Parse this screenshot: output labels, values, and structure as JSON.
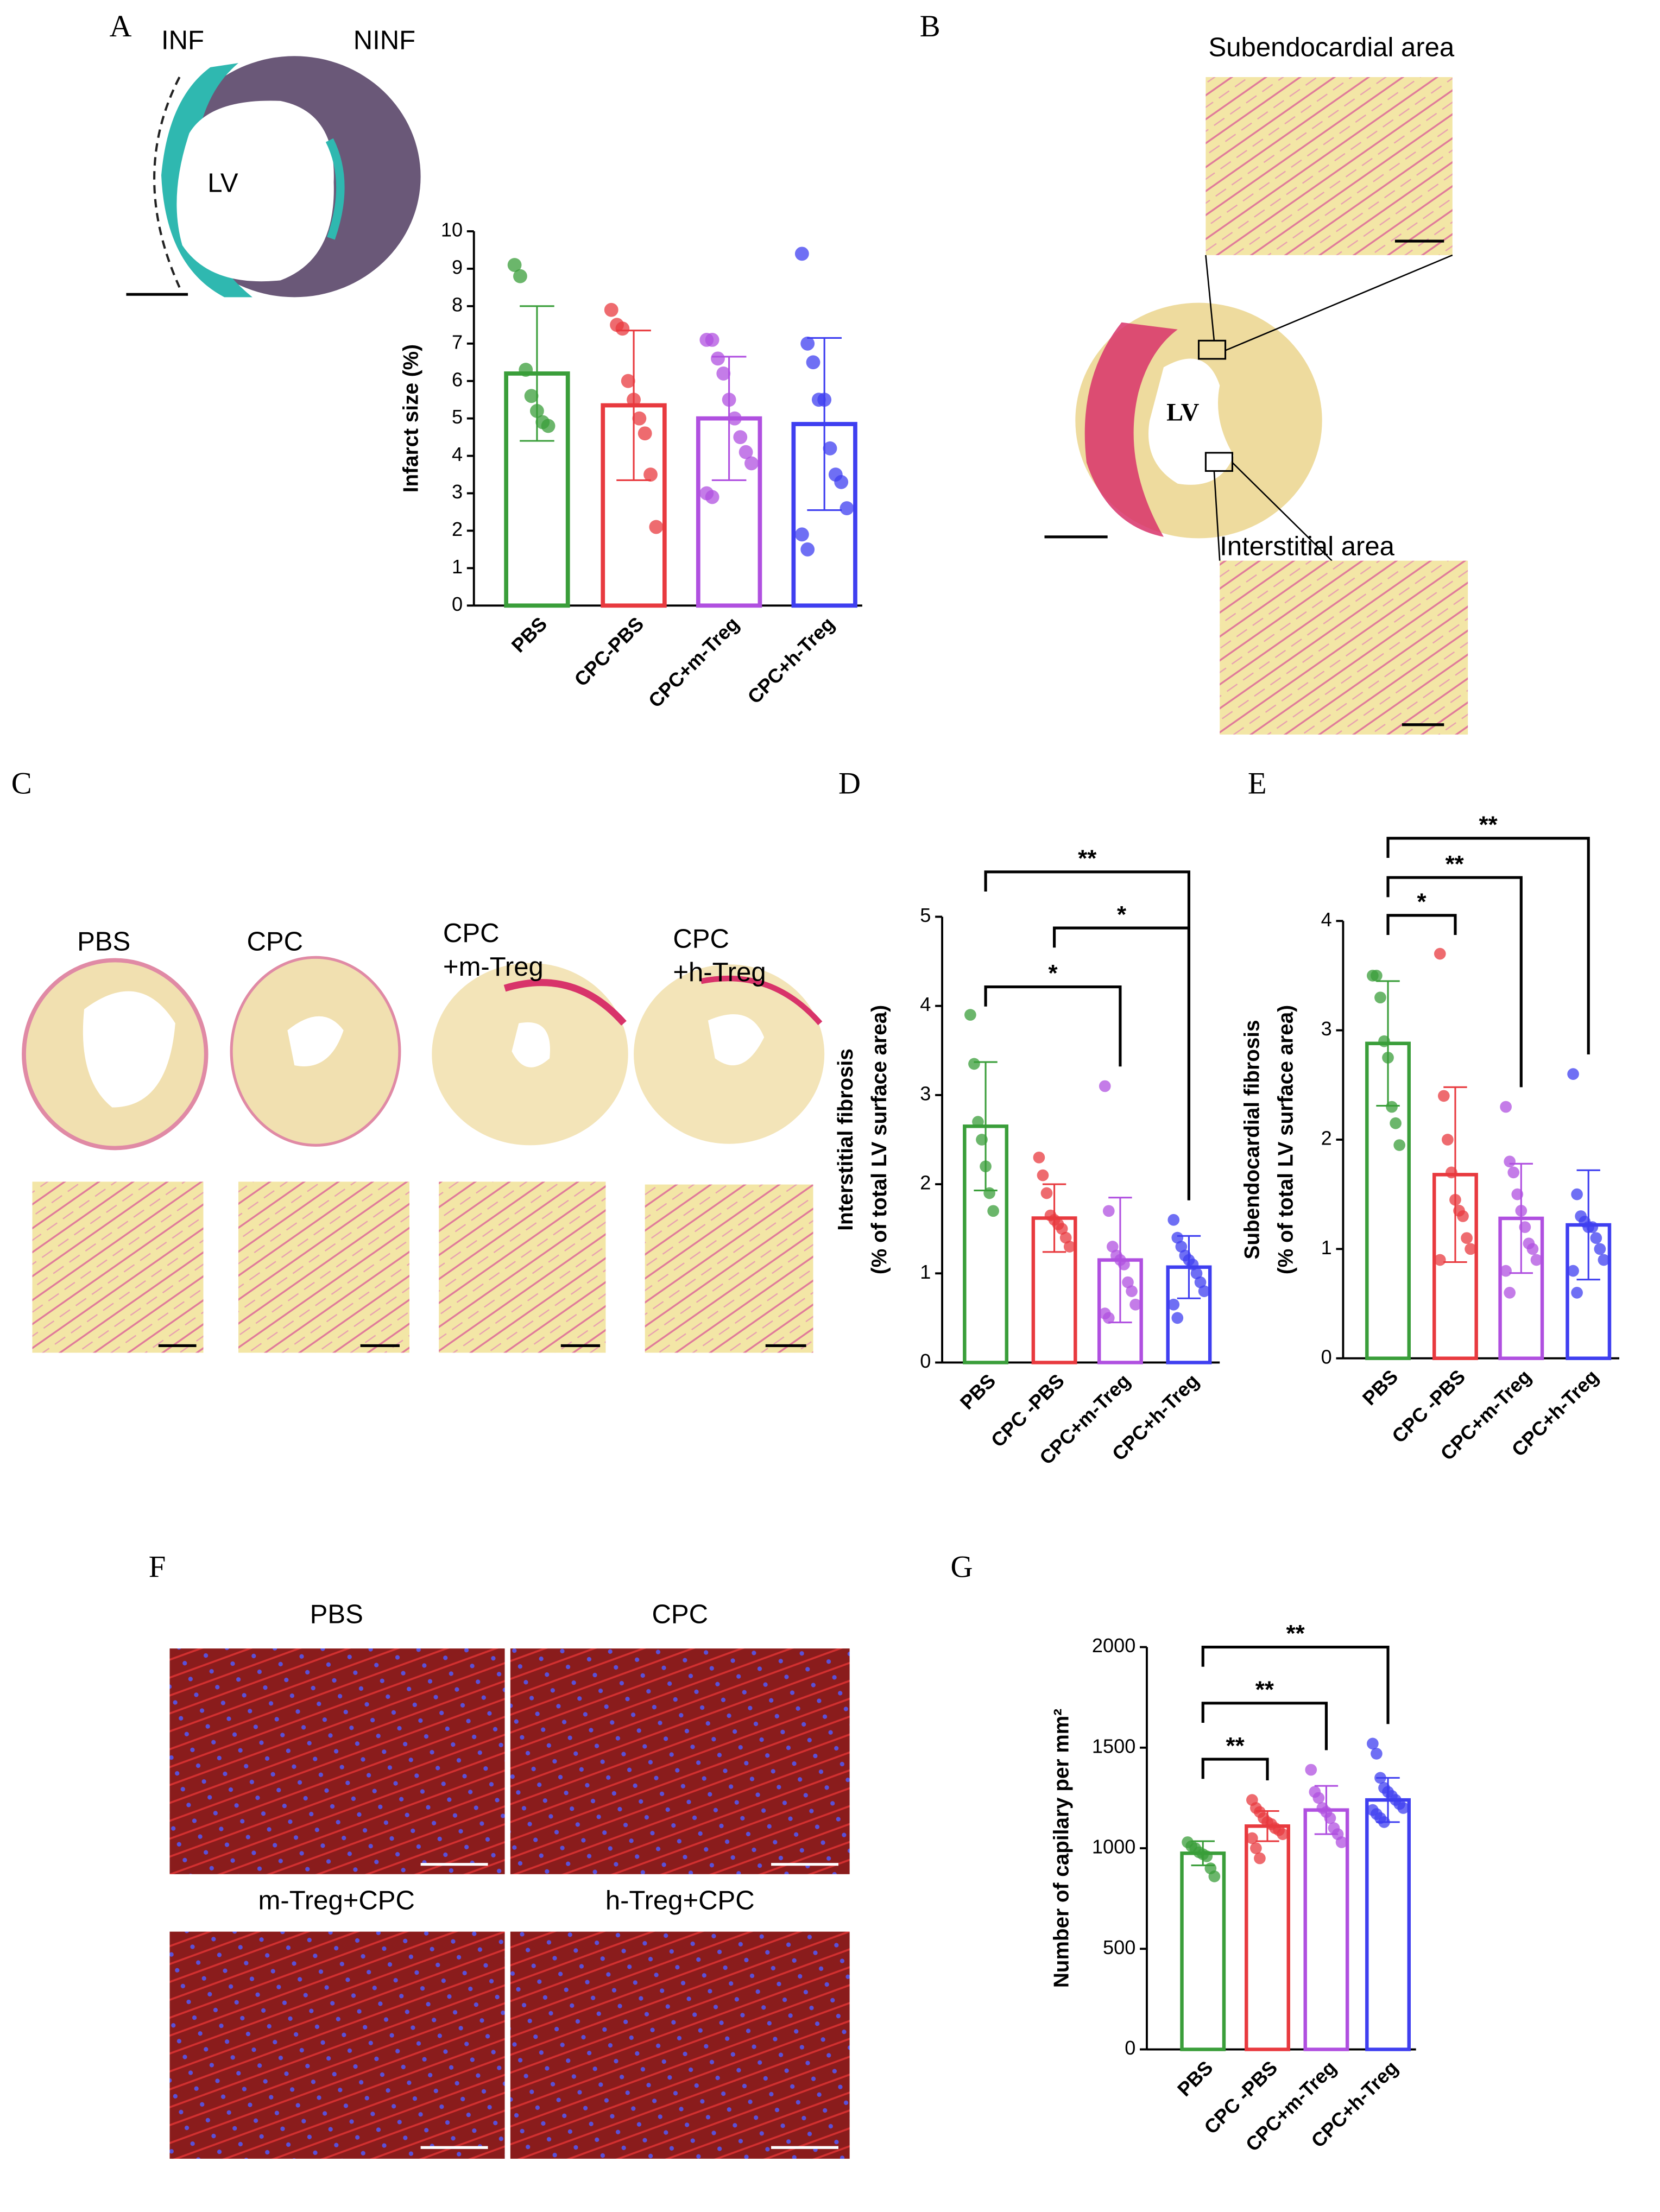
{
  "panel_letters": [
    "A",
    "B",
    "C",
    "D",
    "E",
    "F",
    "G"
  ],
  "image_labels": [
    "INF",
    "NINF",
    "LV",
    "Subendocardial area",
    "LV",
    "Interstitial area",
    "PBS",
    "CPC",
    "CPC",
    "+m-Treg",
    "CPC",
    "+h-Treg",
    "PBS",
    "CPC",
    "m-Treg+CPC",
    "h-Treg+CPC"
  ],
  "chart_data": [
    {
      "type": "bar",
      "y_label": [
        "Infarct size (%)"
      ],
      "categories": [
        "PBS",
        "CPC-PBS",
        "CPC+m-Treg",
        "CPC+h-Treg"
      ],
      "colors": [
        "#3a9e3a",
        "#e83a3f",
        "#b050e0",
        "#3f3ff0"
      ],
      "values": [
        6.2,
        5.35,
        5.0,
        4.85
      ],
      "errors": [
        1.8,
        2.0,
        1.65,
        2.3
      ],
      "points": [
        [
          9.1,
          8.8,
          6.3,
          5.6,
          5.2,
          4.9,
          4.8
        ],
        [
          7.9,
          7.5,
          7.4,
          6.0,
          5.5,
          5.0,
          4.6,
          3.5,
          2.1
        ],
        [
          7.1,
          7.1,
          6.6,
          6.2,
          5.5,
          5.0,
          4.5,
          4.1,
          3.8,
          3.0,
          2.9
        ],
        [
          9.4,
          7.0,
          6.5,
          5.5,
          5.5,
          4.2,
          3.5,
          3.3,
          2.6,
          1.9,
          1.5
        ]
      ],
      "ylim": [
        0,
        10
      ],
      "yticks": [
        0,
        1,
        2,
        3,
        4,
        5,
        6,
        7,
        8,
        9,
        10
      ],
      "significance": []
    },
    {
      "type": "bar",
      "y_label": [
        "Interstitial fibrosis",
        "(% of total LV surface area)"
      ],
      "categories": [
        "PBS",
        "CPC -PBS",
        "CPC+m-Treg",
        "CPC+h-Treg"
      ],
      "colors": [
        "#3a9e3a",
        "#e83a3f",
        "#b050e0",
        "#3f3ff0"
      ],
      "values": [
        2.65,
        1.62,
        1.15,
        1.07
      ],
      "errors": [
        0.72,
        0.38,
        0.7,
        0.35
      ],
      "points": [
        [
          3.9,
          3.35,
          2.7,
          2.5,
          2.2,
          1.9,
          1.7
        ],
        [
          2.3,
          2.1,
          1.9,
          1.65,
          1.6,
          1.55,
          1.5,
          1.4,
          1.3
        ],
        [
          3.1,
          1.7,
          1.3,
          1.2,
          1.15,
          1.1,
          0.9,
          0.8,
          0.65,
          0.55,
          0.5
        ],
        [
          1.6,
          1.4,
          1.3,
          1.2,
          1.15,
          1.1,
          1.0,
          0.9,
          0.8,
          0.65,
          0.5
        ]
      ],
      "ylim": [
        0,
        5
      ],
      "yticks": [
        0,
        1,
        2,
        3,
        4,
        5
      ],
      "significance": [
        {
          "groups": [
            0,
            3
          ],
          "label": "**"
        },
        {
          "groups": [
            1,
            3
          ],
          "label": "*"
        },
        {
          "groups": [
            0,
            2
          ],
          "label": "*"
        }
      ]
    },
    {
      "type": "bar",
      "y_label": [
        "Subendocardial  fibrosis",
        "(% of total LV surface area)"
      ],
      "categories": [
        "PBS",
        "CPC -PBS",
        "CPC+m-Treg",
        "CPC+h-Treg"
      ],
      "colors": [
        "#3a9e3a",
        "#e83a3f",
        "#b050e0",
        "#3f3ff0"
      ],
      "values": [
        2.88,
        1.68,
        1.28,
        1.22
      ],
      "errors": [
        0.57,
        0.8,
        0.5,
        0.5
      ],
      "points": [
        [
          3.5,
          3.5,
          3.3,
          2.9,
          2.75,
          2.3,
          2.15,
          1.95
        ],
        [
          3.7,
          2.4,
          2.0,
          1.7,
          1.45,
          1.35,
          1.3,
          1.1,
          1.0,
          0.9
        ],
        [
          2.3,
          1.8,
          1.7,
          1.5,
          1.35,
          1.2,
          1.05,
          1.0,
          0.9,
          0.8,
          0.6
        ],
        [
          2.6,
          1.5,
          1.3,
          1.25,
          1.2,
          1.2,
          1.1,
          1.0,
          0.9,
          0.8,
          0.6
        ]
      ],
      "ylim": [
        0,
        4
      ],
      "yticks": [
        0,
        1,
        2,
        3,
        4
      ],
      "significance": [
        {
          "groups": [
            0,
            3
          ],
          "label": "**"
        },
        {
          "groups": [
            0,
            2
          ],
          "label": "**"
        },
        {
          "groups": [
            0,
            1
          ],
          "label": "*"
        }
      ]
    },
    {
      "type": "bar",
      "y_label": [
        "Number of capilary per mm²"
      ],
      "categories": [
        "PBS",
        "CPC -PBS",
        "CPC+m-Treg",
        "CPC+h-Treg"
      ],
      "colors": [
        "#3a9e3a",
        "#e83a3f",
        "#b050e0",
        "#3f3ff0"
      ],
      "values": [
        975,
        1110,
        1190,
        1240
      ],
      "errors": [
        60,
        75,
        120,
        110
      ],
      "points": [
        [
          1030,
          1010,
          1000,
          980,
          970,
          960,
          900,
          860
        ],
        [
          1240,
          1200,
          1180,
          1150,
          1130,
          1120,
          1100,
          1090,
          1070,
          1050,
          1000,
          950
        ],
        [
          1390,
          1280,
          1250,
          1200,
          1180,
          1150,
          1100,
          1070,
          1030
        ],
        [
          1520,
          1470,
          1350,
          1300,
          1280,
          1260,
          1240,
          1220,
          1200,
          1190,
          1170,
          1150,
          1130
        ]
      ],
      "ylim": [
        0,
        2000
      ],
      "yticks": [
        0,
        500,
        1000,
        1500,
        2000
      ],
      "significance": [
        {
          "groups": [
            0,
            3
          ],
          "label": "**"
        },
        {
          "groups": [
            0,
            2
          ],
          "label": "**"
        },
        {
          "groups": [
            0,
            1
          ],
          "label": "**"
        }
      ]
    }
  ]
}
